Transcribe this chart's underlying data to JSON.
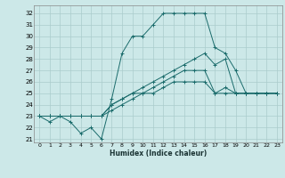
{
  "title": "",
  "xlabel": "Humidex (Indice chaleur)",
  "bg_color": "#cce8e8",
  "grid_color": "#aacccc",
  "line_color": "#1a6b6b",
  "xlim": [
    -0.5,
    23.5
  ],
  "ylim": [
    20.7,
    32.7
  ],
  "xticks": [
    0,
    1,
    2,
    3,
    4,
    5,
    6,
    7,
    8,
    9,
    10,
    11,
    12,
    13,
    14,
    15,
    16,
    17,
    18,
    19,
    20,
    21,
    22,
    23
  ],
  "yticks": [
    21,
    22,
    23,
    24,
    25,
    26,
    27,
    28,
    29,
    30,
    31,
    32
  ],
  "series": [
    [
      23,
      22.5,
      23,
      22.5,
      21.5,
      22,
      21,
      24.5,
      28.5,
      30,
      30,
      31,
      32,
      32,
      32,
      32,
      32,
      29,
      28.5,
      27,
      25,
      25,
      25,
      25
    ],
    [
      23,
      23,
      23,
      23,
      23,
      23,
      23,
      24,
      24.5,
      25,
      25.5,
      26,
      26.5,
      27,
      27.5,
      28,
      28.5,
      27.5,
      28,
      25,
      25,
      25,
      25,
      25
    ],
    [
      23,
      23,
      23,
      23,
      23,
      23,
      23,
      24,
      24.5,
      25,
      25,
      25.5,
      26,
      26.5,
      27,
      27,
      27,
      25,
      25.5,
      25,
      25,
      25,
      25,
      25
    ],
    [
      23,
      23,
      23,
      23,
      23,
      23,
      23,
      23.5,
      24,
      24.5,
      25,
      25,
      25.5,
      26,
      26,
      26,
      26,
      25,
      25,
      25,
      25,
      25,
      25,
      25
    ]
  ]
}
